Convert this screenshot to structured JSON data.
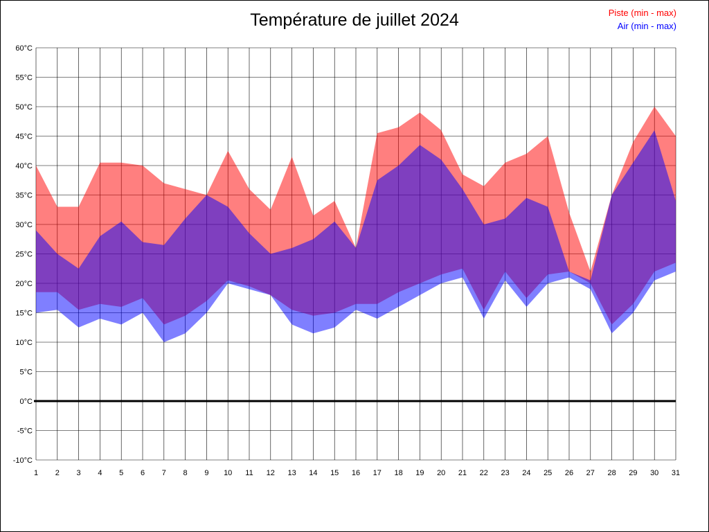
{
  "chart_data": {
    "type": "area",
    "title": "Température de juillet 2024",
    "x": [
      1,
      2,
      3,
      4,
      5,
      6,
      7,
      8,
      9,
      10,
      11,
      12,
      13,
      14,
      15,
      16,
      17,
      18,
      19,
      20,
      21,
      22,
      23,
      24,
      25,
      26,
      27,
      28,
      29,
      30,
      31
    ],
    "ylim": [
      -10,
      60
    ],
    "ytick_step": 5,
    "ytick_suffix": "°C",
    "grid": true,
    "zero_line": true,
    "legend_position": "top-right",
    "series": [
      {
        "key": "piste",
        "name": "Piste (min - max)",
        "color": "#ff0000",
        "opacity": 0.5,
        "max": [
          40,
          33,
          33,
          40.5,
          40.5,
          40,
          37,
          36,
          35,
          42.5,
          36,
          32.5,
          41.5,
          31.5,
          34,
          26,
          45.5,
          46.5,
          49,
          46,
          38.5,
          36.5,
          40.5,
          42,
          45,
          32,
          22,
          35,
          44,
          50,
          45
        ],
        "min": [
          18.5,
          18.5,
          15.5,
          16.5,
          16,
          17.5,
          13,
          14.5,
          17,
          20.5,
          19.5,
          18,
          15.5,
          14.5,
          15,
          16.5,
          16.5,
          18.5,
          20,
          21.5,
          22.5,
          15.5,
          22,
          17.5,
          21.5,
          22,
          20,
          13,
          16.5,
          22,
          23.5
        ]
      },
      {
        "key": "air",
        "name": "Air (min - max)",
        "color": "#0000ff",
        "opacity": 0.5,
        "max": [
          29,
          25,
          22.5,
          28,
          30.5,
          27,
          26.5,
          31,
          35,
          33,
          28.5,
          25,
          26,
          27.5,
          30.5,
          26,
          37.5,
          40,
          43.5,
          41,
          36,
          30,
          31,
          34.5,
          33,
          22,
          20.5,
          35,
          40.5,
          46,
          34
        ],
        "min": [
          15,
          15.5,
          12.5,
          14,
          13,
          15,
          10,
          11.5,
          15,
          20,
          19,
          18,
          13,
          11.5,
          12.5,
          15.5,
          14,
          16,
          18,
          20,
          21,
          14,
          20.5,
          16,
          20,
          21,
          19,
          11.5,
          15,
          20.5,
          22
        ]
      }
    ]
  }
}
